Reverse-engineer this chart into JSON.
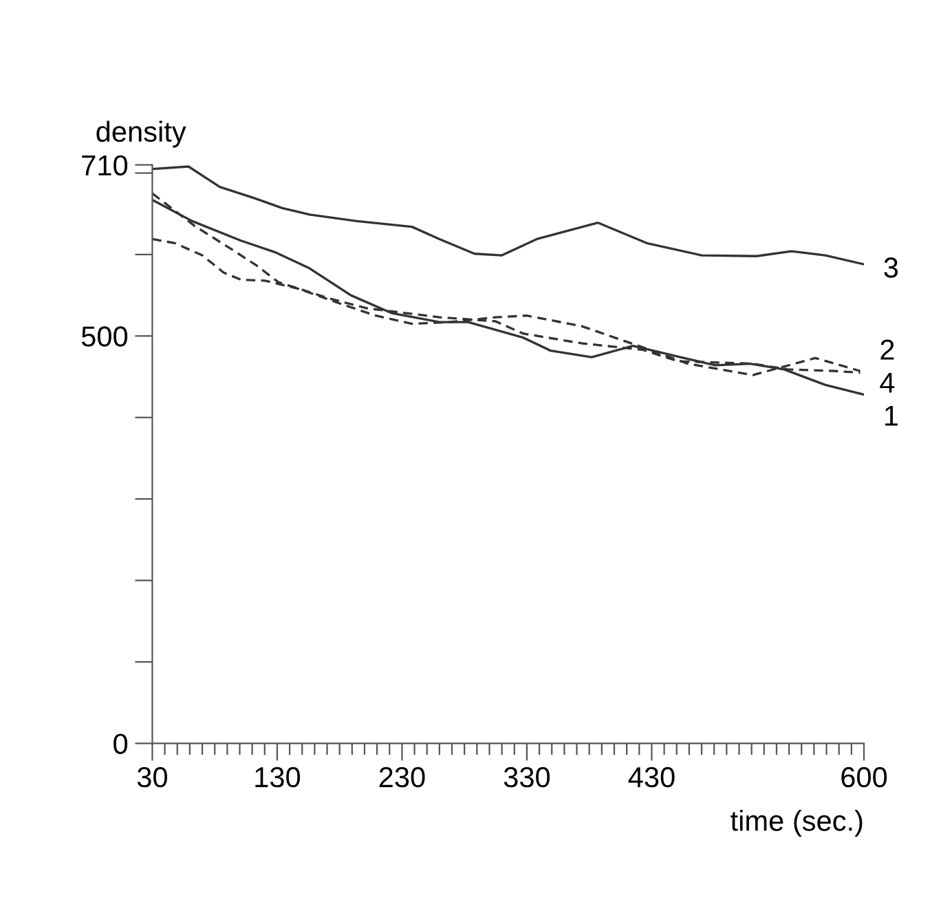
{
  "chart_data": {
    "type": "line",
    "xlabel": "time (sec.)",
    "ylabel": "density",
    "xlim": [
      30,
      600
    ],
    "ylim": [
      0,
      710
    ],
    "xticks": [
      30,
      {
        "value": 40,
        "label": null
      },
      {
        "value": 50,
        "label": null
      },
      {
        "value": 60,
        "label": null
      },
      {
        "value": 70,
        "label": null
      },
      {
        "value": 80,
        "label": null
      },
      {
        "value": 90,
        "label": null
      },
      {
        "value": 100,
        "label": null
      },
      {
        "value": 110,
        "label": null
      },
      {
        "value": 120,
        "label": null
      },
      130,
      {
        "value": 140,
        "label": null
      },
      {
        "value": 150,
        "label": null
      },
      {
        "value": 160,
        "label": null
      },
      {
        "value": 170,
        "label": null
      },
      {
        "value": 180,
        "label": null
      },
      {
        "value": 190,
        "label": null
      },
      {
        "value": 200,
        "label": null
      },
      {
        "value": 210,
        "label": null
      },
      {
        "value": 220,
        "label": null
      },
      230,
      {
        "value": 240,
        "label": null
      },
      {
        "value": 250,
        "label": null
      },
      {
        "value": 260,
        "label": null
      },
      {
        "value": 270,
        "label": null
      },
      {
        "value": 280,
        "label": null
      },
      {
        "value": 290,
        "label": null
      },
      {
        "value": 300,
        "label": null
      },
      {
        "value": 310,
        "label": null
      },
      {
        "value": 320,
        "label": null
      },
      330,
      {
        "value": 340,
        "label": null
      },
      {
        "value": 350,
        "label": null
      },
      {
        "value": 360,
        "label": null
      },
      {
        "value": 370,
        "label": null
      },
      {
        "value": 380,
        "label": null
      },
      {
        "value": 390,
        "label": null
      },
      {
        "value": 400,
        "label": null
      },
      {
        "value": 410,
        "label": null
      },
      {
        "value": 420,
        "label": null
      },
      430,
      {
        "value": 440,
        "label": null
      },
      {
        "value": 450,
        "label": null
      },
      {
        "value": 460,
        "label": null
      },
      {
        "value": 470,
        "label": null
      },
      {
        "value": 480,
        "label": null
      },
      {
        "value": 490,
        "label": null
      },
      {
        "value": 500,
        "label": null
      },
      {
        "value": 510,
        "label": null
      },
      {
        "value": 520,
        "label": null
      },
      {
        "value": 530,
        "label": null
      },
      {
        "value": 540,
        "label": null
      },
      {
        "value": 550,
        "label": null
      },
      {
        "value": 560,
        "label": null
      },
      {
        "value": 570,
        "label": null
      },
      {
        "value": 580,
        "label": null
      },
      {
        "value": 590,
        "label": null
      },
      600
    ],
    "yticks": [
      0,
      {
        "value": 100,
        "label": null
      },
      {
        "value": 200,
        "label": null
      },
      {
        "value": 300,
        "label": null
      },
      {
        "value": 400,
        "label": null
      },
      500,
      {
        "value": 600,
        "label": null
      },
      {
        "value": 700,
        "label": null
      },
      710
    ],
    "grid": false,
    "legend": false,
    "marker": "none",
    "series": [
      {
        "name": "1",
        "color": "#333333",
        "line_style": "solid",
        "x": [
          30,
          62,
          101,
          128,
          156,
          189,
          222,
          260,
          283,
          327,
          349,
          382,
          415,
          453,
          481,
          509,
          536,
          569,
          600
        ],
        "values": [
          667,
          641,
          617,
          603,
          583,
          550,
          528,
          517,
          517,
          498,
          482,
          474,
          488,
          474,
          464,
          466,
          459,
          440,
          428
        ]
      },
      {
        "name": "2",
        "color": "#333333",
        "line_style": "dashed",
        "x": [
          30,
          48,
          70,
          87,
          101,
          120,
          147,
          180,
          209,
          238,
          268,
          305,
          330,
          374,
          423,
          459,
          511,
          561,
          597
        ],
        "values": [
          619,
          614,
          599,
          578,
          569,
          568,
          558,
          540,
          525,
          515,
          517,
          523,
          525,
          512,
          486,
          466,
          452,
          473,
          457
        ]
      },
      {
        "name": "3",
        "color": "#333333",
        "line_style": "solid",
        "x": [
          30,
          59,
          84,
          112,
          134,
          156,
          194,
          238,
          260,
          288,
          310,
          338,
          387,
          426,
          470,
          514,
          542,
          569,
          600
        ],
        "values": [
          705,
          708,
          683,
          669,
          657,
          649,
          641,
          634,
          619,
          601,
          599,
          619,
          639,
          614,
          599,
          598,
          604,
          599,
          588
        ]
      },
      {
        "name": "4",
        "color": "#333333",
        "line_style": "dashed",
        "x": [
          30,
          64,
          95,
          114,
          131,
          172,
          202,
          260,
          305,
          327,
          374,
          423,
          451,
          511,
          539,
          577,
          597
        ],
        "values": [
          675,
          635,
          605,
          586,
          566,
          546,
          534,
          523,
          518,
          503,
          491,
          483,
          469,
          466,
          459,
          457,
          455
        ]
      }
    ]
  }
}
